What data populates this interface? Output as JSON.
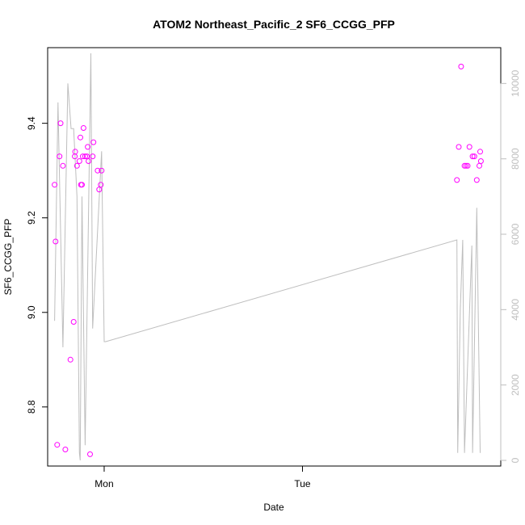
{
  "chart_data": {
    "type": "scatter",
    "title": "ATOM2 Northeast_Pacific_2 SF6_CCGG_PFP",
    "xlabel": "Date",
    "ylabel": "SF6_CCGG_PFP",
    "x_unit": "days",
    "xlim": [
      -0.285,
      2.0
    ],
    "x_ticks": [
      {
        "value": 0,
        "label": "Mon"
      },
      {
        "value": 1,
        "label": "Tue"
      }
    ],
    "ylim": [
      8.675,
      9.56
    ],
    "y_ticks": [
      8.8,
      9.0,
      9.2,
      9.4
    ],
    "y2lim": [
      -150,
      10950
    ],
    "y2_ticks": [
      0,
      2000,
      4000,
      6000,
      8000,
      10000
    ],
    "grid": false,
    "series": [
      {
        "role": "points",
        "color": "#ff00ff",
        "marker": "open-circle",
        "points": [
          {
            "x": -0.25,
            "y": 9.27
          },
          {
            "x": -0.245,
            "y": 9.15
          },
          {
            "x": -0.237,
            "y": 8.72
          },
          {
            "x": -0.225,
            "y": 9.33
          },
          {
            "x": -0.22,
            "y": 9.4
          },
          {
            "x": -0.208,
            "y": 9.31
          },
          {
            "x": -0.196,
            "y": 8.71
          },
          {
            "x": -0.17,
            "y": 8.9
          },
          {
            "x": -0.154,
            "y": 8.98
          },
          {
            "x": -0.148,
            "y": 9.33
          },
          {
            "x": -0.146,
            "y": 9.34
          },
          {
            "x": -0.137,
            "y": 9.31
          },
          {
            "x": -0.125,
            "y": 9.32
          },
          {
            "x": -0.12,
            "y": 9.37
          },
          {
            "x": -0.117,
            "y": 9.27
          },
          {
            "x": -0.112,
            "y": 9.27
          },
          {
            "x": -0.108,
            "y": 9.33
          },
          {
            "x": -0.104,
            "y": 9.39
          },
          {
            "x": -0.096,
            "y": 9.33
          },
          {
            "x": -0.087,
            "y": 9.33
          },
          {
            "x": -0.083,
            "y": 9.35
          },
          {
            "x": -0.079,
            "y": 9.32
          },
          {
            "x": -0.071,
            "y": 8.7
          },
          {
            "x": -0.058,
            "y": 9.33
          },
          {
            "x": -0.054,
            "y": 9.36
          },
          {
            "x": -0.033,
            "y": 9.3
          },
          {
            "x": -0.025,
            "y": 9.26
          },
          {
            "x": -0.017,
            "y": 9.27
          },
          {
            "x": -0.013,
            "y": 9.3
          },
          {
            "x": 1.779,
            "y": 9.28
          },
          {
            "x": 1.788,
            "y": 9.35
          },
          {
            "x": 1.8,
            "y": 9.52
          },
          {
            "x": 1.817,
            "y": 9.31
          },
          {
            "x": 1.825,
            "y": 9.31
          },
          {
            "x": 1.833,
            "y": 9.31
          },
          {
            "x": 1.842,
            "y": 9.35
          },
          {
            "x": 1.858,
            "y": 9.33
          },
          {
            "x": 1.867,
            "y": 9.33
          },
          {
            "x": 1.879,
            "y": 9.28
          },
          {
            "x": 1.892,
            "y": 9.31
          },
          {
            "x": 1.896,
            "y": 9.34
          },
          {
            "x": 1.9,
            "y": 9.32
          }
        ]
      },
      {
        "role": "altitude-line",
        "color": "#bebebe",
        "axis": "right",
        "points": [
          {
            "x": -0.25,
            "y": 3700
          },
          {
            "x": -0.233,
            "y": 9500
          },
          {
            "x": -0.208,
            "y": 3000
          },
          {
            "x": -0.183,
            "y": 10000
          },
          {
            "x": -0.167,
            "y": 8800
          },
          {
            "x": -0.154,
            "y": 8800
          },
          {
            "x": -0.137,
            "y": 7000
          },
          {
            "x": -0.125,
            "y": 200
          },
          {
            "x": -0.121,
            "y": 0
          },
          {
            "x": -0.112,
            "y": 7000
          },
          {
            "x": -0.096,
            "y": 400
          },
          {
            "x": -0.067,
            "y": 10800
          },
          {
            "x": -0.058,
            "y": 3500
          },
          {
            "x": -0.013,
            "y": 8200
          },
          {
            "x": 0.0,
            "y": 3150
          },
          {
            "x": 0.008,
            "y": 3150
          },
          {
            "x": 1.779,
            "y": 5850
          },
          {
            "x": 1.783,
            "y": 200
          },
          {
            "x": 1.796,
            "y": 4000
          },
          {
            "x": 1.808,
            "y": 5850
          },
          {
            "x": 1.817,
            "y": 200
          },
          {
            "x": 1.854,
            "y": 5700
          },
          {
            "x": 1.858,
            "y": 200
          },
          {
            "x": 1.879,
            "y": 6700
          },
          {
            "x": 1.896,
            "y": 200
          }
        ]
      }
    ]
  }
}
